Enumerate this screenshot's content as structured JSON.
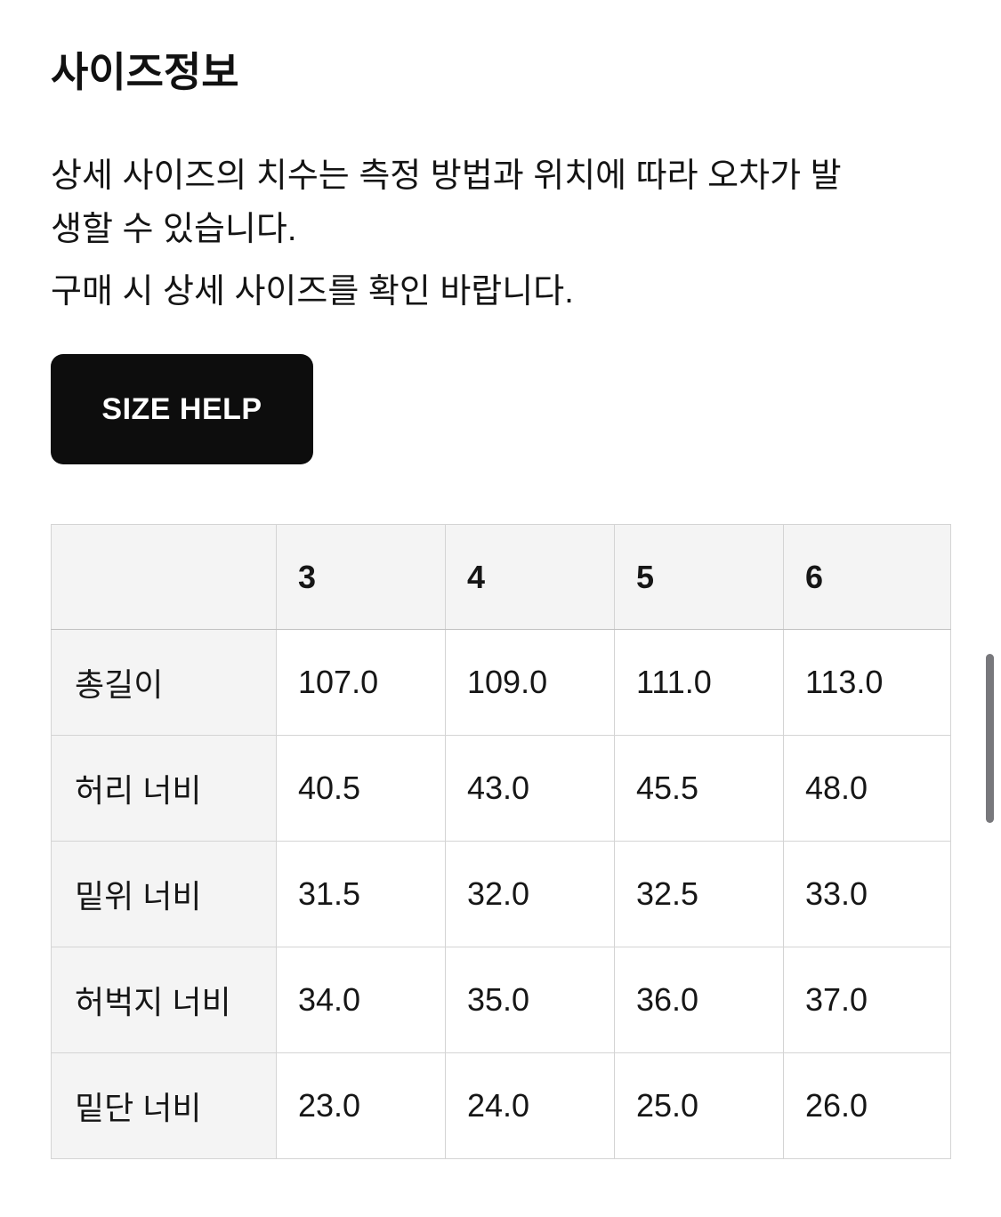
{
  "page": {
    "title": "사이즈정보",
    "notice_lines": [
      "상세 사이즈의 치수는 측정 방법과 위치에 따라 오차가 발",
      "생할 수 있습니다.",
      "구매 시 상세 사이즈를 확인 바랍니다."
    ],
    "notice_sentences": [
      "상세 사이즈의 치수는 측정 방법과 위치에 따라 오차가 발생할 수 있습니다.",
      "구매 시 상세 사이즈를 확인 바랍니다."
    ],
    "size_help_label": "SIZE HELP"
  },
  "size_table": {
    "columns": [
      "3",
      "4",
      "5",
      "6"
    ],
    "rows": [
      {
        "label": "총길이",
        "values": [
          "107.0",
          "109.0",
          "111.0",
          "113.0"
        ]
      },
      {
        "label": "허리 너비",
        "values": [
          "40.5",
          "43.0",
          "45.5",
          "48.0"
        ]
      },
      {
        "label": "밑위 너비",
        "values": [
          "31.5",
          "32.0",
          "32.5",
          "33.0"
        ]
      },
      {
        "label": "허벅지 너비",
        "values": [
          "34.0",
          "35.0",
          "36.0",
          "37.0"
        ]
      },
      {
        "label": "밑단 너비",
        "values": [
          "23.0",
          "24.0",
          "25.0",
          "26.0"
        ]
      }
    ]
  },
  "colors": {
    "page_background": "#ffffff",
    "text": "#111111",
    "button_background": "#0d0d0d",
    "button_text": "#ffffff",
    "table_header_background": "#f4f4f4",
    "table_border": "#d4d4d4",
    "scrollbar_thumb": "#78787c"
  }
}
